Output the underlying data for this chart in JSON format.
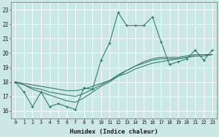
{
  "xlabel": "Humidex (Indice chaleur)",
  "x_ticks": [
    0,
    1,
    2,
    3,
    4,
    5,
    6,
    7,
    8,
    9,
    10,
    11,
    12,
    13,
    14,
    15,
    16,
    17,
    18,
    19,
    20,
    21,
    22,
    23
  ],
  "ylim": [
    15.5,
    23.5
  ],
  "xlim": [
    -0.5,
    23.5
  ],
  "yticks": [
    16,
    17,
    18,
    19,
    20,
    21,
    22,
    23
  ],
  "bg_color": "#cce8e4",
  "grid_color": "#ffffff",
  "line_color": "#2a7a6a",
  "series": [
    [
      18.0,
      17.3,
      16.3,
      17.3,
      16.3,
      16.5,
      16.3,
      16.1,
      17.6,
      17.5,
      19.5,
      20.7,
      22.8,
      21.9,
      21.9,
      21.9,
      22.5,
      20.8,
      19.2,
      19.4,
      19.6,
      20.2,
      19.5,
      20.2
    ],
    [
      18.0,
      17.8,
      17.5,
      17.3,
      17.1,
      16.9,
      16.7,
      16.6,
      16.9,
      17.3,
      17.7,
      18.0,
      18.4,
      18.8,
      19.1,
      19.4,
      19.6,
      19.7,
      19.7,
      19.7,
      19.8,
      19.9,
      19.9,
      19.9
    ],
    [
      18.0,
      17.8,
      17.6,
      17.5,
      17.3,
      17.2,
      17.1,
      17.0,
      17.2,
      17.5,
      17.8,
      18.1,
      18.5,
      18.8,
      19.1,
      19.3,
      19.5,
      19.6,
      19.6,
      19.6,
      19.7,
      19.8,
      19.8,
      19.9
    ],
    [
      18.0,
      17.9,
      17.8,
      17.7,
      17.6,
      17.5,
      17.4,
      17.4,
      17.5,
      17.7,
      17.9,
      18.1,
      18.4,
      18.6,
      18.9,
      19.1,
      19.3,
      19.4,
      19.5,
      19.6,
      19.7,
      19.8,
      19.8,
      19.9
    ]
  ],
  "xtick_fontsize": 5.0,
  "ytick_fontsize": 5.5,
  "xlabel_fontsize": 6.5
}
